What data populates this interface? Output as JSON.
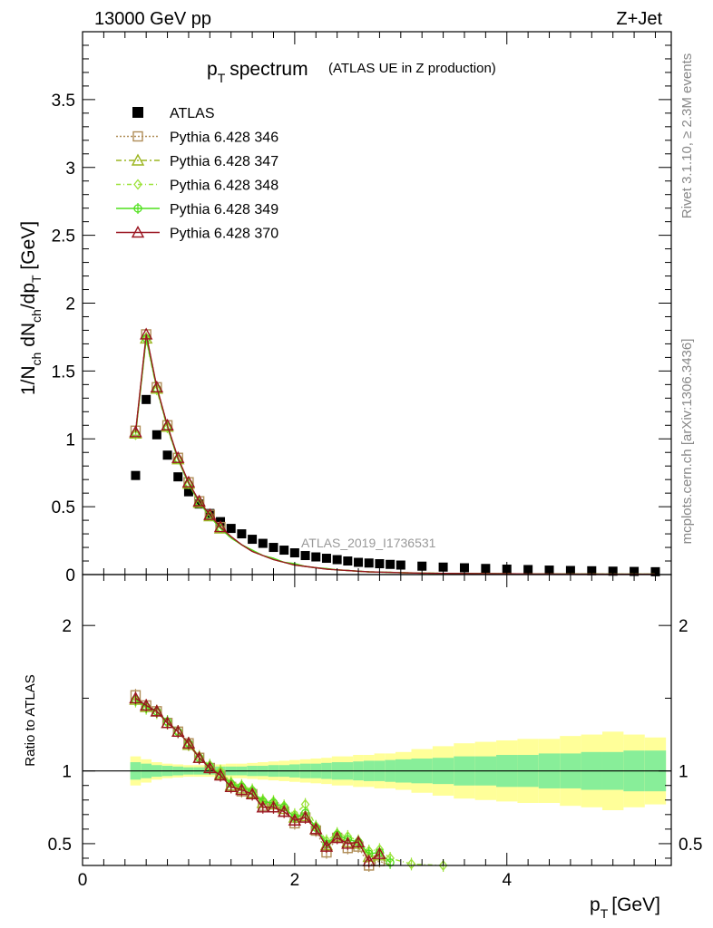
{
  "header": {
    "energy": "13000 GeV pp",
    "process": "Z+Jet",
    "side_right_top": "Rivet 3.1.10, ≥ 2.3M events",
    "side_right_bottom": "mcplots.cern.ch [arXiv:1306.3436]",
    "watermark": "ATLAS_2019_I1736531"
  },
  "colors": {
    "atlas": "#000000",
    "p346": "#b08d57",
    "p347": "#9cb520",
    "p348": "#9de23a",
    "p349": "#4fe01c",
    "p370": "#9a1520",
    "band_outer": "#ffff99",
    "band_inner": "#88ee99"
  },
  "chart_data": [
    {
      "type": "line",
      "title": "p_T spectrum (ATLAS UE in Z production)",
      "title_main": "p",
      "title_sub": "T",
      "title_rest": "spectrum",
      "title_note": "(ATLAS UE in Z production)",
      "ylabel": "1/N_ch dN_ch/dp_T [GeV]",
      "xlim": [
        0,
        5.55
      ],
      "ylim": [
        0,
        4.0
      ],
      "y_ticks": [
        "0",
        "0.5",
        "1",
        "1.5",
        "2",
        "2.5",
        "3",
        "3.5"
      ],
      "x": [
        0.5,
        0.6,
        0.7,
        0.8,
        0.9,
        1.0,
        1.1,
        1.2,
        1.3,
        1.4,
        1.5,
        1.6,
        1.7,
        1.8,
        1.9,
        2.0,
        2.1,
        2.2,
        2.3,
        2.4,
        2.5,
        2.6,
        2.7,
        2.8,
        2.9,
        3.0,
        3.2,
        3.4,
        3.6,
        3.8,
        4.0,
        4.2,
        4.4,
        4.6,
        4.8,
        5.0,
        5.2,
        5.4
      ],
      "legend": [
        "ATLAS",
        "Pythia 6.428 346",
        "Pythia 6.428 347",
        "Pythia 6.428 348",
        "Pythia 6.428 349",
        "Pythia 6.428 370"
      ],
      "series": [
        {
          "name": "ATLAS",
          "values": [
            0.73,
            1.29,
            1.03,
            0.88,
            0.72,
            0.61,
            0.52,
            0.45,
            0.39,
            0.34,
            0.3,
            0.26,
            0.23,
            0.2,
            0.18,
            0.16,
            0.14,
            0.13,
            0.12,
            0.11,
            0.1,
            0.09,
            0.085,
            0.08,
            0.075,
            0.07,
            0.062,
            0.055,
            0.05,
            0.045,
            0.04,
            0.037,
            0.033,
            0.03,
            0.028,
            0.025,
            0.023,
            0.021
          ]
        },
        {
          "name": "Pythia 6.428 346",
          "values": [
            1.06,
            1.77,
            1.38,
            1.1,
            0.86,
            0.68,
            0.54,
            0.44,
            0.35,
            0.28,
            0.22,
            0.17,
            0.14,
            0.11,
            0.09,
            0.07,
            0.06,
            0.05,
            0.04,
            0.035,
            0.03,
            0.025,
            0.02,
            0.018,
            0.016,
            0.014,
            0.011,
            0.009,
            0.008,
            0.007,
            0.006,
            0.005,
            0.005,
            0.004,
            0.004,
            0.003,
            0.003,
            0.003
          ]
        },
        {
          "name": "Pythia 6.428 347",
          "values": [
            1.04,
            1.74,
            1.37,
            1.09,
            0.85,
            0.67,
            0.53,
            0.43,
            0.34,
            0.27,
            0.22,
            0.17,
            0.14,
            0.11,
            0.09,
            0.07,
            0.06,
            0.05,
            0.04,
            0.035,
            0.03,
            0.025,
            0.02,
            0.018,
            0.016,
            0.014,
            0.011,
            0.009,
            0.008,
            0.007,
            0.006,
            0.005,
            0.005,
            0.004,
            0.004,
            0.003,
            0.003,
            0.003
          ]
        },
        {
          "name": "Pythia 6.428 348",
          "values": [
            1.03,
            1.73,
            1.36,
            1.08,
            0.85,
            0.67,
            0.53,
            0.43,
            0.34,
            0.27,
            0.22,
            0.18,
            0.14,
            0.12,
            0.09,
            0.08,
            0.06,
            0.05,
            0.045,
            0.035,
            0.03,
            0.025,
            0.02,
            0.018,
            0.016,
            0.014,
            0.011,
            0.009,
            0.008,
            0.007,
            0.006,
            0.005,
            0.005,
            0.004,
            0.004,
            0.003,
            0.003,
            0.003
          ]
        },
        {
          "name": "Pythia 6.428 349",
          "values": [
            1.04,
            1.74,
            1.37,
            1.09,
            0.85,
            0.67,
            0.53,
            0.43,
            0.34,
            0.27,
            0.22,
            0.18,
            0.14,
            0.12,
            0.09,
            0.08,
            0.06,
            0.05,
            0.045,
            0.035,
            0.03,
            0.025,
            0.02,
            0.018,
            0.016,
            0.014,
            0.011,
            0.009,
            0.008,
            0.007,
            0.006,
            0.005,
            0.005,
            0.004,
            0.004,
            0.003,
            0.003,
            0.003
          ]
        },
        {
          "name": "Pythia 6.428 370",
          "values": [
            1.05,
            1.77,
            1.38,
            1.1,
            0.86,
            0.68,
            0.54,
            0.44,
            0.35,
            0.28,
            0.22,
            0.17,
            0.14,
            0.11,
            0.09,
            0.07,
            0.06,
            0.05,
            0.04,
            0.035,
            0.03,
            0.025,
            0.02,
            0.018,
            0.016,
            0.014,
            0.011,
            0.009,
            0.008,
            0.007,
            0.006,
            0.005,
            0.005,
            0.004,
            0.004,
            0.003,
            0.003,
            0.003
          ]
        }
      ]
    },
    {
      "type": "line",
      "title": "Ratio to ATLAS",
      "ylabel": "Ratio to ATLAS",
      "xlabel": "p_T [GeV]",
      "xlabel_main": "p",
      "xlabel_sub": "T",
      "xlabel_unit": "[GeV]",
      "xlim": [
        0,
        5.55
      ],
      "ylim": [
        0.35,
        2.35
      ],
      "x_ticks": [
        "0",
        "2",
        "4"
      ],
      "y_ticks": [
        "0.5",
        "1",
        "2"
      ],
      "band_x": [
        0.5,
        0.6,
        0.7,
        0.8,
        0.9,
        1.0,
        1.1,
        1.2,
        1.3,
        1.4,
        1.5,
        1.6,
        1.7,
        1.8,
        1.9,
        2.0,
        2.1,
        2.2,
        2.3,
        2.4,
        2.5,
        2.6,
        2.7,
        2.8,
        2.9,
        3.0,
        3.2,
        3.4,
        3.6,
        3.8,
        4.0,
        4.2,
        4.4,
        4.6,
        4.8,
        5.0,
        5.2,
        5.4
      ],
      "band_inner_halfwidth": [
        0.06,
        0.05,
        0.04,
        0.035,
        0.03,
        0.025,
        0.025,
        0.025,
        0.03,
        0.03,
        0.03,
        0.035,
        0.035,
        0.04,
        0.04,
        0.045,
        0.05,
        0.05,
        0.055,
        0.06,
        0.06,
        0.065,
        0.07,
        0.07,
        0.075,
        0.08,
        0.085,
        0.09,
        0.1,
        0.1,
        0.11,
        0.11,
        0.12,
        0.12,
        0.13,
        0.13,
        0.14,
        0.14
      ],
      "band_outer_halfwidth": [
        0.1,
        0.08,
        0.06,
        0.05,
        0.045,
        0.04,
        0.04,
        0.04,
        0.045,
        0.05,
        0.05,
        0.055,
        0.06,
        0.065,
        0.07,
        0.075,
        0.08,
        0.085,
        0.09,
        0.1,
        0.1,
        0.11,
        0.11,
        0.12,
        0.12,
        0.13,
        0.15,
        0.17,
        0.19,
        0.2,
        0.21,
        0.22,
        0.22,
        0.24,
        0.25,
        0.27,
        0.25,
        0.23
      ],
      "series": [
        {
          "name": "Pythia 6.428 346",
          "x": [
            0.5,
            0.6,
            0.7,
            0.8,
            0.9,
            1.0,
            1.1,
            1.2,
            1.3,
            1.4,
            1.5,
            1.6,
            1.7,
            1.8,
            1.9,
            2.0,
            2.1,
            2.2,
            2.3,
            2.4,
            2.5,
            2.6,
            2.7,
            2.8,
            2.9
          ],
          "values": [
            1.52,
            1.45,
            1.41,
            1.33,
            1.27,
            1.19,
            1.09,
            1.02,
            0.97,
            0.89,
            0.86,
            0.84,
            0.76,
            0.75,
            0.72,
            0.64,
            0.68,
            0.59,
            0.44,
            0.54,
            0.47,
            0.48,
            0.35,
            0.38,
            0.33
          ]
        },
        {
          "name": "Pythia 6.428 347",
          "x": [
            0.5,
            0.6,
            0.7,
            0.8,
            0.9,
            1.0,
            1.1,
            1.2,
            1.3,
            1.4,
            1.5,
            1.6,
            1.7,
            1.8,
            1.9,
            2.0,
            2.1,
            2.2,
            2.3,
            2.4,
            2.5,
            2.6,
            2.7,
            2.8,
            2.9
          ],
          "values": [
            1.49,
            1.44,
            1.41,
            1.33,
            1.27,
            1.18,
            1.09,
            1.02,
            0.98,
            0.9,
            0.88,
            0.85,
            0.78,
            0.77,
            0.74,
            0.68,
            0.69,
            0.6,
            0.49,
            0.55,
            0.51,
            0.5,
            0.41,
            0.42,
            0.33
          ]
        },
        {
          "name": "Pythia 6.428 348",
          "x": [
            0.5,
            0.6,
            0.7,
            0.8,
            0.9,
            1.0,
            1.1,
            1.2,
            1.3,
            1.4,
            1.5,
            1.6,
            1.7,
            1.8,
            1.9,
            2.0,
            2.1,
            2.2,
            2.3,
            2.4,
            2.5,
            2.6,
            2.7,
            2.8,
            2.9,
            3.1,
            3.4
          ],
          "values": [
            1.48,
            1.43,
            1.4,
            1.33,
            1.27,
            1.19,
            1.1,
            1.04,
            1.0,
            0.92,
            0.9,
            0.87,
            0.8,
            0.79,
            0.76,
            0.7,
            0.77,
            0.62,
            0.52,
            0.57,
            0.55,
            0.52,
            0.45,
            0.46,
            0.4,
            0.36,
            0.35
          ]
        },
        {
          "name": "Pythia 6.428 349",
          "x": [
            0.5,
            0.6,
            0.7,
            0.8,
            0.9,
            1.0,
            1.1,
            1.2,
            1.3,
            1.4,
            1.5,
            1.6,
            1.7,
            1.8,
            1.9,
            2.0,
            2.1,
            2.2,
            2.3,
            2.4,
            2.5,
            2.6,
            2.7,
            2.8,
            2.9
          ],
          "values": [
            1.49,
            1.44,
            1.41,
            1.34,
            1.27,
            1.19,
            1.09,
            1.03,
            0.98,
            0.91,
            0.89,
            0.86,
            0.79,
            0.78,
            0.75,
            0.68,
            0.71,
            0.61,
            0.5,
            0.56,
            0.53,
            0.51,
            0.43,
            0.44,
            0.37
          ]
        },
        {
          "name": "Pythia 6.428 370",
          "x": [
            0.5,
            0.6,
            0.7,
            0.8,
            0.9,
            1.0,
            1.1,
            1.2,
            1.3,
            1.4,
            1.5,
            1.6,
            1.7,
            1.8,
            1.9,
            2.0,
            2.1,
            2.2,
            2.3,
            2.4,
            2.5,
            2.6,
            2.7,
            2.8
          ],
          "values": [
            1.5,
            1.45,
            1.41,
            1.33,
            1.27,
            1.19,
            1.09,
            1.02,
            0.97,
            0.89,
            0.87,
            0.84,
            0.75,
            0.75,
            0.72,
            0.66,
            0.68,
            0.6,
            0.48,
            0.54,
            0.5,
            0.51,
            0.38,
            0.43
          ]
        }
      ]
    }
  ]
}
